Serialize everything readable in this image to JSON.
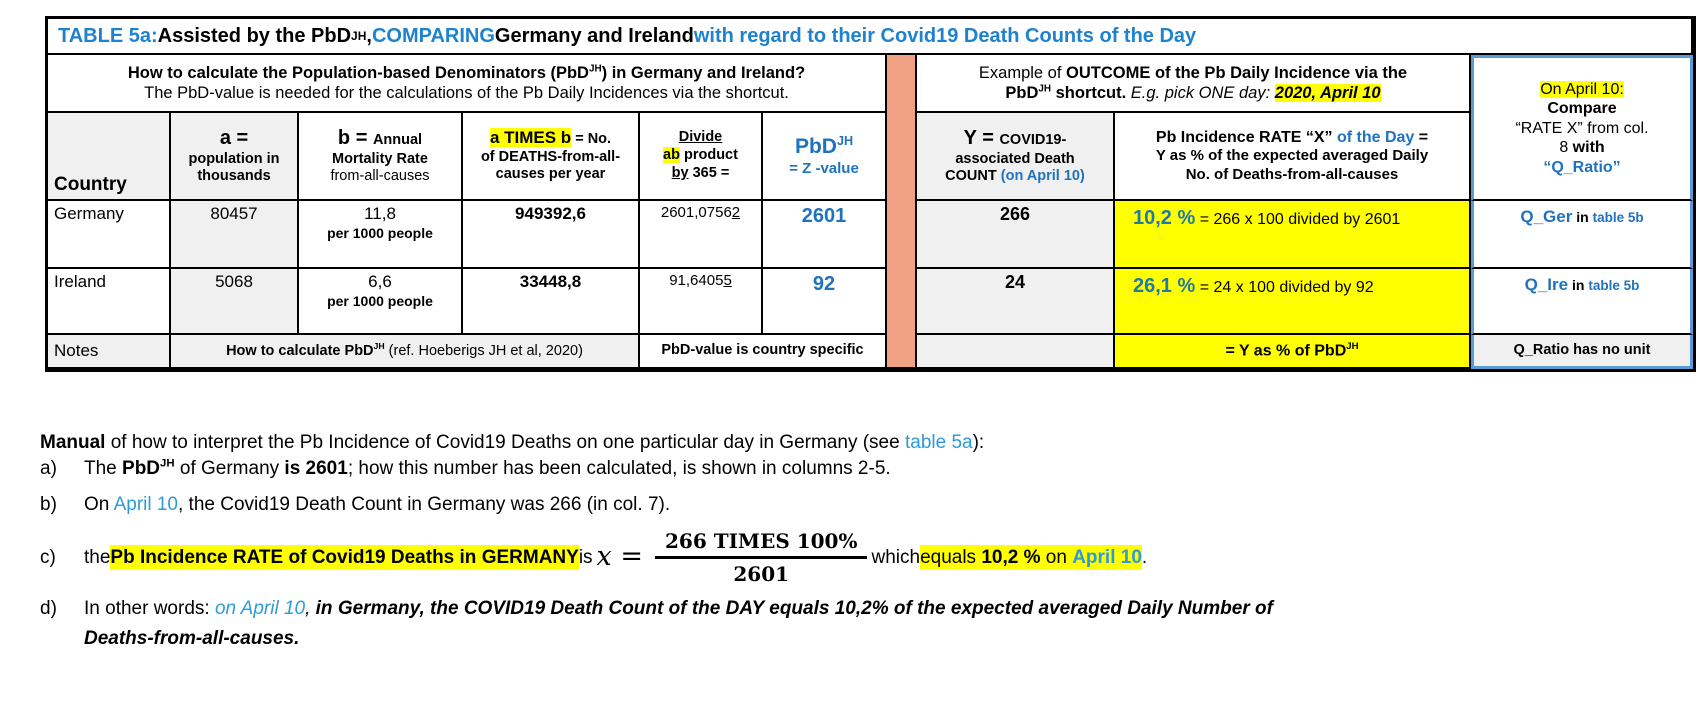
{
  "colors": {
    "title_blue": "#1E82CE",
    "table_blue": "#1F72BE",
    "link_blue": "#2E9BD6",
    "rate_teal": "#1F7BA5",
    "highlight_yellow": "#FFFF00",
    "separator_salmon": "#F2A284",
    "compare_border_blue": "#5B9BD5",
    "cell_gray": "#F0F0F0"
  },
  "title": {
    "t1": "TABLE 5a:",
    "t2": " Assisted by the PbD",
    "sup": "JH",
    "t3": ", ",
    "t4": "COMPARING",
    "t5": " Germany and Ireland ",
    "t6": "with regard to their Covid19 Death Counts of the Day"
  },
  "howto": {
    "line1a": "How to calculate the Population-based Denominators (PbD",
    "sup": "JH",
    "line1b": ") in Germany and Ireland?",
    "line2": "The PbD-value is needed for the calculations of the Pb Daily Incidences via the shortcut."
  },
  "example": {
    "r1": "Example of ",
    "r2": "OUTCOME of the Pb Daily Incidence via the",
    "r3": "PbD",
    "sup": "JH",
    "r4": " shortcut.  ",
    "r5": "E.g. pick ONE day: ",
    "r6": "2020, April 10"
  },
  "columns": {
    "country": {
      "label": "Country"
    },
    "a": {
      "big": "a =",
      "l2": "population in",
      "l3": "thousands"
    },
    "b": {
      "big": "b = ",
      "small": "Annual",
      "l2": "Mortality Rate",
      "l3": "from-all-causes"
    },
    "ab": {
      "hl": "a TIMES b",
      "rest": " = No.",
      "l2": "of DEATHS-from-all-",
      "l3": "causes per year"
    },
    "divide": {
      "u1": "Divide",
      "hl": "ab",
      "r1": " product",
      "u2": "by",
      "r2": " 365 ="
    },
    "pbd": {
      "big": "PbD",
      "sup": "JH",
      "l2": "= Z -value"
    },
    "y": {
      "big": "Y = ",
      "small": "COVID19-",
      "l2": "associated Death",
      "l3a": "COUNT ",
      "l3b": "(on April 10)"
    },
    "rate": {
      "l1a": "Pb Incidence RATE “X” ",
      "l1b": "of the Day",
      "l1c": " =",
      "l2": "Y as % of the expected averaged Daily",
      "l3": "No. of Deaths-from-all-causes"
    },
    "compare": {
      "hl": "On April 10:",
      "l2": "Compare",
      "l3": "“RATE X” from col.",
      "l4a": "8 ",
      "l4b": "with",
      "l5": "“Q_Ratio”"
    }
  },
  "rows": {
    "germany": {
      "country": "Germany",
      "a": "80457",
      "b1": "11,8",
      "b2": "per 1000 people",
      "ab": "949392,6",
      "div_main": "2601,0756",
      "div_last": "2",
      "pbd": "2601",
      "y": "266",
      "rate_pct": "10,2 %",
      "rate_calc": " = 266 x 100 divided by 2601",
      "q1": "Q_Ger",
      "q2": " in ",
      "q3": "table 5b"
    },
    "ireland": {
      "country": "Ireland",
      "a": "5068",
      "b1": "6,6",
      "b2": "per 1000 people",
      "ab": "33448,8",
      "div_main": "91,6405",
      "div_last": "5",
      "pbd": "92",
      "y": "24",
      "rate_pct": "26,1 %",
      "rate_calc": " = 24 x 100 divided by 92",
      "q1": "Q_Ire",
      "q2": " in ",
      "q3": "table 5b"
    }
  },
  "notes": {
    "label": "Notes",
    "howto_b": "How to calculate PbD",
    "sup": "JH",
    "howto_r": " (ref. Hoeberigs JH et al, 2020)",
    "country_specific": "PbD-value is country specific",
    "yellow_a": "= Y as % of PbD",
    "yellow_sup": "JH",
    "qratio": "Q_Ratio has no unit"
  },
  "manual": {
    "intro_b": "Manual",
    "intro_r": " of how to interpret the Pb Incidence of Covid19 Deaths on one particular day in Germany (see ",
    "intro_link": "table 5a",
    "intro_end": "):",
    "a_label": "a)",
    "a1": "The ",
    "a2": "PbD",
    "a2sup": "JH",
    "a3": " of Germany ",
    "a4": "is 2601",
    "a5": "; how this number has been calculated, is shown in columns 2-5.",
    "b_label": "b)",
    "b1": "On ",
    "b2": "April 10",
    "b3": ", the Covid19 Death Count in Germany was 266 (in col. 7).",
    "c_label": "c)",
    "c1": "the ",
    "c_hl": "Pb Incidence RATE of Covid19 Deaths in GERMANY",
    "c2": " is ",
    "c_x": "x =",
    "c_num": "266 TIMES 100%",
    "c_den": "2601",
    "c3": " which ",
    "c4": "equals ",
    "c5": "10,2 %",
    "c6": " on ",
    "c7": "April 10",
    "c8": ".",
    "d_label": "d)",
    "d1": "In other words: ",
    "d2": "on April 10",
    "d3": ", ",
    "d4": "in Germany, the COVID19 Death Count of the DAY equals 10,2% of the expected averaged Daily Number of",
    "d5": "Deaths-from-all-causes."
  }
}
